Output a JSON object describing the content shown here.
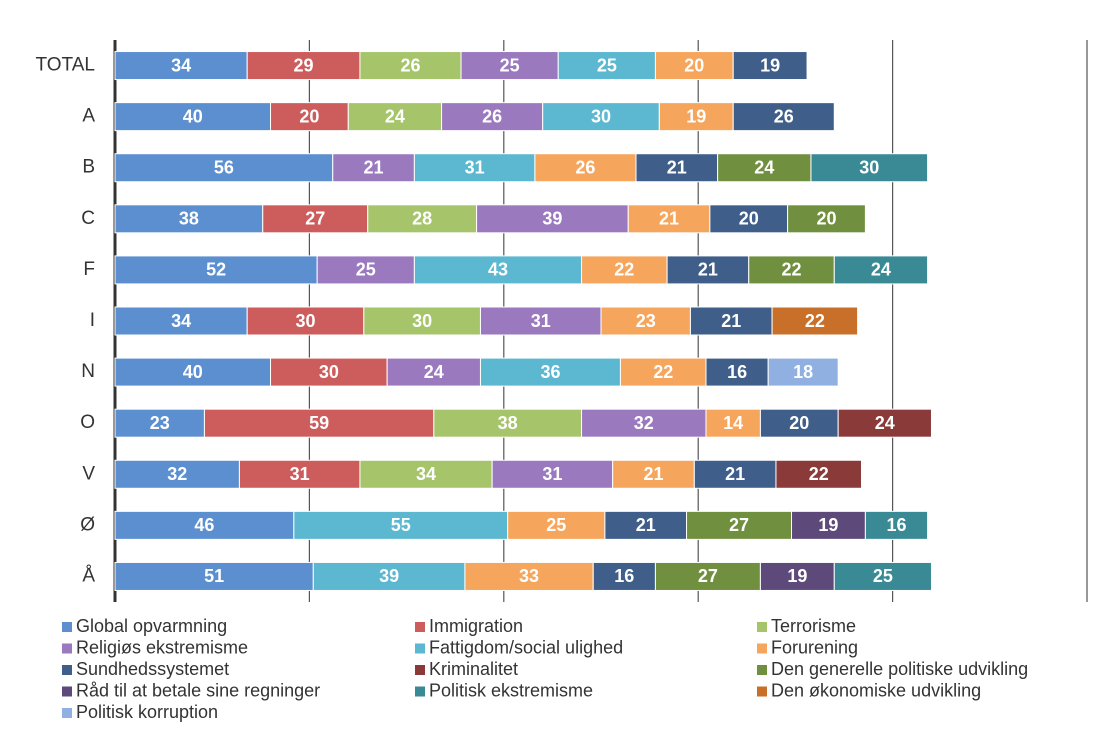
{
  "chart_data": {
    "type": "stacked-bar-horizontal",
    "categories": [
      "TOTAL",
      "A",
      "B",
      "C",
      "F",
      "I",
      "N",
      "O",
      "V",
      "Ø",
      "Å"
    ],
    "xlim": [
      0,
      250
    ],
    "xticks": [
      0,
      50,
      100,
      150,
      200,
      250
    ],
    "grid": true,
    "series": [
      {
        "name": "Global opvarmning",
        "color": "#5b8fcf",
        "values": [
          34,
          40,
          56,
          38,
          52,
          34,
          40,
          23,
          32,
          46,
          51
        ]
      },
      {
        "name": "Immigration",
        "color": "#cd5c5c",
        "values": [
          29,
          20,
          null,
          27,
          null,
          30,
          30,
          59,
          31,
          null,
          null
        ]
      },
      {
        "name": "Terrorisme",
        "color": "#a6c56b",
        "values": [
          26,
          24,
          null,
          28,
          null,
          30,
          null,
          38,
          34,
          null,
          null
        ]
      },
      {
        "name": "Religiøs ekstremisme",
        "color": "#9a79bf",
        "values": [
          25,
          26,
          21,
          39,
          25,
          31,
          24,
          32,
          31,
          null,
          null
        ]
      },
      {
        "name": "Fattigdom/social ulighed",
        "color": "#5bb8d0",
        "values": [
          25,
          30,
          31,
          null,
          43,
          null,
          36,
          null,
          null,
          55,
          39
        ]
      },
      {
        "name": "Forurening",
        "color": "#f6a55c",
        "values": [
          20,
          19,
          26,
          21,
          22,
          23,
          22,
          14,
          21,
          25,
          33
        ]
      },
      {
        "name": "Sundhedssystemet",
        "color": "#3f5f8a",
        "values": [
          19,
          26,
          21,
          20,
          21,
          21,
          16,
          20,
          21,
          21,
          16
        ]
      },
      {
        "name": "Kriminalitet",
        "color": "#8b3a3a",
        "values": [
          null,
          null,
          null,
          null,
          null,
          null,
          null,
          24,
          22,
          null,
          null
        ]
      },
      {
        "name": "Den generelle politiske udvikling",
        "color": "#708f3f",
        "values": [
          null,
          null,
          24,
          20,
          22,
          null,
          null,
          null,
          null,
          27,
          27
        ]
      },
      {
        "name": "Råd til at betale sine regninger",
        "color": "#5e4a7a",
        "values": [
          null,
          null,
          null,
          null,
          null,
          null,
          null,
          null,
          null,
          19,
          19
        ]
      },
      {
        "name": "Politisk ekstremisme",
        "color": "#3a8a96",
        "values": [
          null,
          null,
          30,
          null,
          24,
          null,
          null,
          null,
          null,
          16,
          25
        ]
      },
      {
        "name": "Den økonomiske udvikling",
        "color": "#c8702a",
        "values": [
          null,
          null,
          null,
          null,
          null,
          22,
          null,
          null,
          null,
          null,
          null
        ]
      },
      {
        "name": "Politisk korruption",
        "color": "#8fb0e0",
        "values": [
          null,
          null,
          null,
          null,
          null,
          null,
          18,
          null,
          null,
          null,
          null
        ]
      }
    ]
  }
}
